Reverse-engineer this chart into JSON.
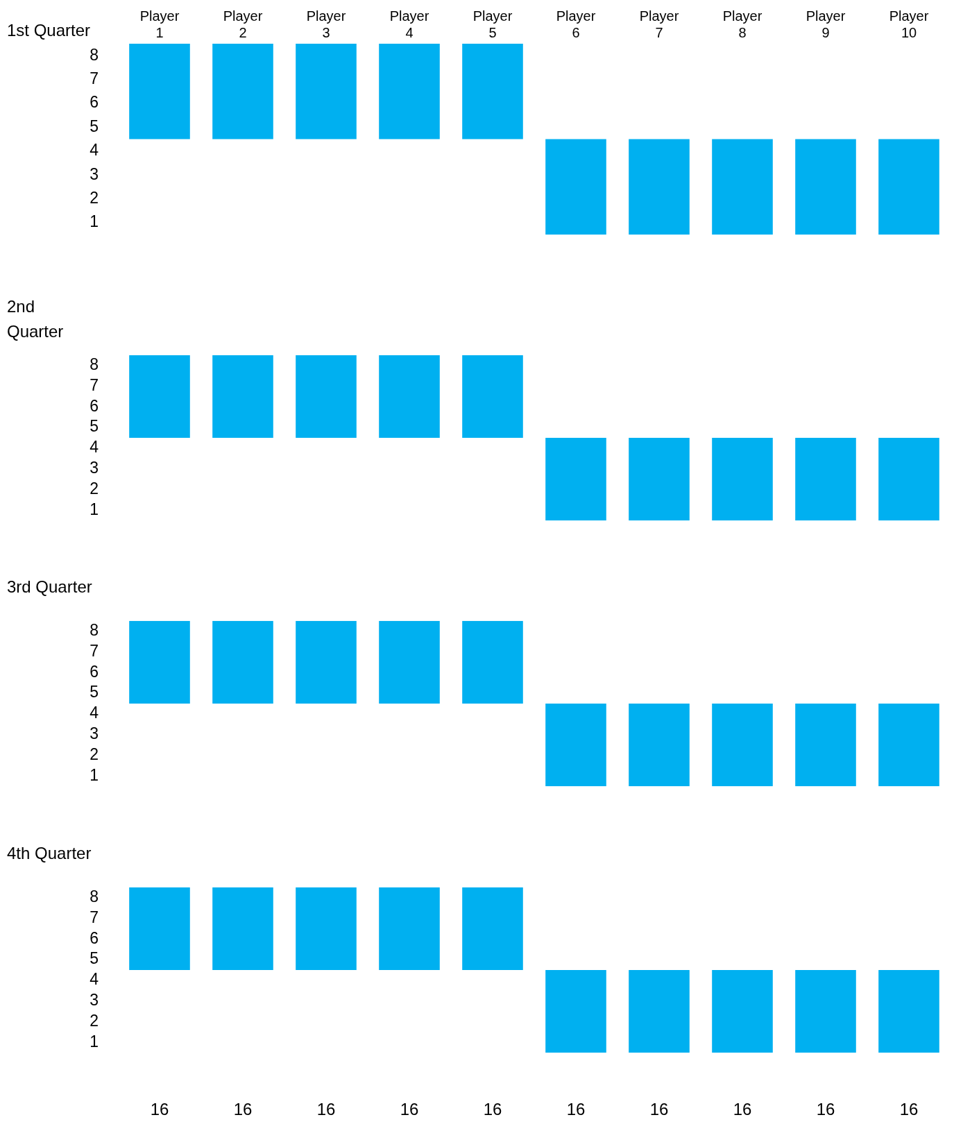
{
  "chart_data": [
    {
      "type": "bar",
      "title": "1st Quarter",
      "categories": [
        "Player 1",
        "Player 2",
        "Player 3",
        "Player 4",
        "Player 5",
        "Player 6",
        "Player 7",
        "Player 8",
        "Player 9",
        "Player 10"
      ],
      "values": [
        4,
        4,
        4,
        4,
        4,
        4,
        4,
        4,
        4,
        4
      ],
      "base": [
        4.5,
        4.5,
        4.5,
        4.5,
        4.5,
        0.5,
        0.5,
        0.5,
        0.5,
        0.5
      ],
      "color": "#00b0f0",
      "ylim": [
        0.5,
        8.5
      ],
      "yticks": [
        1,
        2,
        3,
        4,
        5,
        6,
        7,
        8
      ],
      "grid": false,
      "legend": false
    },
    {
      "type": "bar",
      "title": "2nd Quarter",
      "categories": [
        null,
        null,
        null,
        null,
        null,
        null,
        null,
        null,
        null,
        null
      ],
      "values": [
        4,
        4,
        4,
        4,
        4,
        4,
        4,
        4,
        4,
        4
      ],
      "base": [
        4.5,
        4.5,
        4.5,
        4.5,
        4.5,
        0.5,
        0.5,
        0.5,
        0.5,
        0.5
      ],
      "color": "#00b0f0",
      "ylim": [
        0.5,
        8.5
      ],
      "yticks": [
        1,
        2,
        3,
        4,
        5,
        6,
        7,
        8
      ],
      "grid": false,
      "legend": false,
      "tick_labels": "y"
    },
    {
      "type": "bar",
      "title": "3rd Quarter",
      "categories": [
        null,
        null,
        null,
        null,
        null,
        null,
        null,
        null,
        null,
        null
      ],
      "values": [
        4,
        4,
        4,
        4,
        4,
        4,
        4,
        4,
        4,
        4
      ],
      "base": [
        4.5,
        4.5,
        4.5,
        4.5,
        4.5,
        0.5,
        0.5,
        0.5,
        0.5,
        0.5
      ],
      "color": "#00b0f0",
      "ylim": [
        0.5,
        8.5
      ],
      "yticks": [
        1,
        2,
        3,
        4,
        5,
        6,
        7,
        8
      ],
      "grid": false,
      "legend": false,
      "tick_labels": "y"
    },
    {
      "type": "bar",
      "title": "4th Quarter",
      "categories": [
        null,
        null,
        null,
        null,
        null,
        null,
        null,
        null,
        null,
        null
      ],
      "values": [
        4,
        4,
        4,
        4,
        4,
        4,
        4,
        4,
        4,
        4
      ],
      "base": [
        4.5,
        4.5,
        4.5,
        4.5,
        4.5,
        0.5,
        0.5,
        0.5,
        0.5,
        0.5
      ],
      "color": "#00b0f0",
      "ylim": [
        0.5,
        8.5
      ],
      "yticks": [
        1,
        2,
        3,
        4,
        5,
        6,
        7,
        8
      ],
      "grid": false,
      "legend": false,
      "tick_labels": "y"
    },
    {
      "type": "other",
      "categories": [
        null,
        null,
        null,
        null,
        null,
        null,
        null,
        null,
        null,
        null
      ],
      "values": [
        16,
        16,
        16,
        16,
        16,
        16,
        16,
        16,
        16,
        16
      ],
      "data_labels": true
    }
  ]
}
